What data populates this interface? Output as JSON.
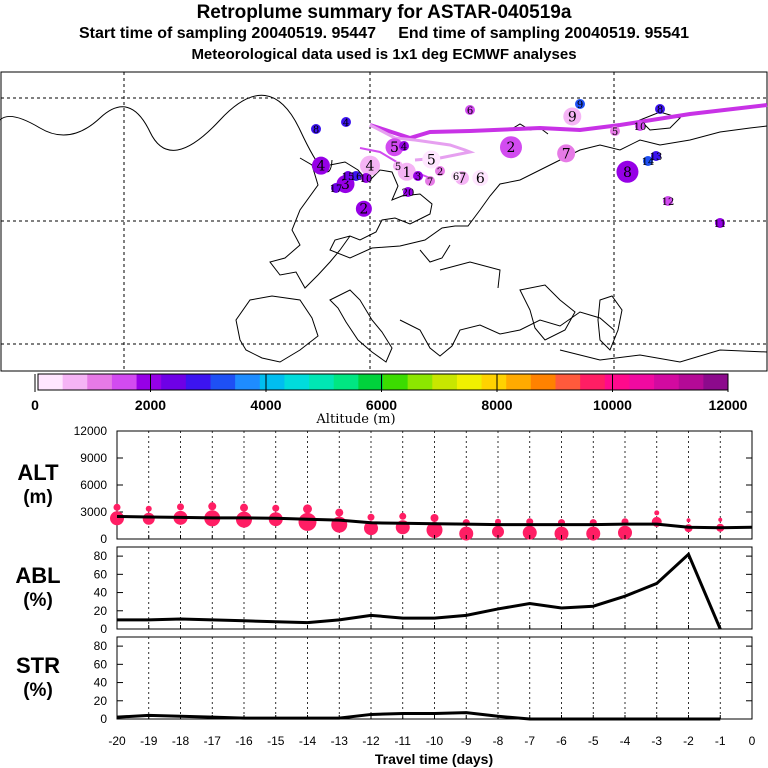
{
  "header": {
    "title": "Retroplume summary for ASTAR-040519a",
    "subtitle": "Start time of sampling 20040519. 95447     End time of sampling 20040519. 95541",
    "meteo": "Meteorological data used is 1x1 deg ECMWF analyses"
  },
  "colorbar": {
    "colors": [
      "#ffe6ff",
      "#f5b4f5",
      "#e67ae6",
      "#d24bf0",
      "#9600e6",
      "#6e00e6",
      "#3c14f0",
      "#1e50f5",
      "#1e8cff",
      "#00bef0",
      "#00dcdc",
      "#00e6b4",
      "#00e682",
      "#00d23c",
      "#3cdc00",
      "#8ce600",
      "#c8e600",
      "#f0f000",
      "#ffd200",
      "#ffaa00",
      "#ff8200",
      "#ff5a3c",
      "#ff1e64",
      "#ff0a8c",
      "#f00aa0",
      "#d20aa0",
      "#b40a96",
      "#8c0a8c"
    ],
    "ticks": [
      "0",
      "2000",
      "4000",
      "6000",
      "8000",
      "10000",
      "12000"
    ],
    "label": "Altitude (m)"
  },
  "map": {
    "plume_labels": [
      {
        "t": "1",
        "lon": 6,
        "lat": 68,
        "c": "#f5b4f5",
        "r": 9
      },
      {
        "t": "2",
        "lon": 23,
        "lat": 72,
        "c": "#d24bf0",
        "r": 11
      },
      {
        "t": "3",
        "lon": -4,
        "lat": 66,
        "c": "#9600e6",
        "r": 9
      },
      {
        "t": "4",
        "lon": -8,
        "lat": 69,
        "c": "#9600e6",
        "r": 9
      },
      {
        "t": "4",
        "lon": 0,
        "lat": 69,
        "c": "#f5b4f5",
        "r": 10
      },
      {
        "t": "5",
        "lon": 4,
        "lat": 72,
        "c": "#d24bf0",
        "r": 9
      },
      {
        "t": "5",
        "lon": 10,
        "lat": 70,
        "c": "#ffe6ff",
        "r": 9
      },
      {
        "t": "7",
        "lon": 15,
        "lat": 67,
        "c": "#f5b4f5",
        "r": 7
      },
      {
        "t": "6",
        "lon": 18,
        "lat": 67,
        "c": "#ffe6ff",
        "r": 8
      },
      {
        "t": "7",
        "lon": 32,
        "lat": 71,
        "c": "#e67ae6",
        "r": 9
      },
      {
        "t": "8",
        "lon": 42,
        "lat": 68,
        "c": "#9600e6",
        "r": 11
      },
      {
        "t": "9",
        "lon": 33,
        "lat": 77,
        "c": "#f5b4f5",
        "r": 9
      },
      {
        "t": "2",
        "lon": -1,
        "lat": 62,
        "c": "#9600e6",
        "r": 8
      }
    ],
    "small_labels": [
      "6",
      "4",
      "8",
      "9",
      "4",
      "16",
      "15",
      "17",
      "10",
      "20",
      "12",
      "14",
      "13",
      "11",
      "5",
      "3",
      "7",
      "2",
      "6",
      "8",
      "10",
      "5"
    ]
  },
  "chart_data": [
    {
      "type": "line",
      "panel": "ALT",
      "ylabel": "ALT\n(m)",
      "yticks": [
        "0",
        "3000",
        "6000",
        "9000",
        "12000"
      ],
      "ylim": [
        0,
        12000
      ],
      "x": [
        -20,
        -19,
        -18,
        -17,
        -16,
        -15,
        -14,
        -13,
        -12,
        -11,
        -10,
        -9,
        -8,
        -7,
        -6,
        -5,
        -4,
        -3,
        -2,
        -1,
        0
      ],
      "values": [
        2500,
        2450,
        2400,
        2350,
        2350,
        2300,
        2200,
        2100,
        1800,
        1750,
        1700,
        1650,
        1600,
        1600,
        1600,
        1600,
        1650,
        1650,
        1300,
        1250,
        1300
      ],
      "dots": [
        {
          "x": -20,
          "alt": 2300,
          "s": 7
        },
        {
          "x": -19,
          "alt": 2250,
          "s": 6
        },
        {
          "x": -18,
          "alt": 2350,
          "s": 7
        },
        {
          "x": -17,
          "alt": 2300,
          "s": 8
        },
        {
          "x": -16,
          "alt": 2150,
          "s": 8
        },
        {
          "x": -15,
          "alt": 2200,
          "s": 7
        },
        {
          "x": -14,
          "alt": 1900,
          "s": 9
        },
        {
          "x": -13,
          "alt": 1600,
          "s": 8
        },
        {
          "x": -12,
          "alt": 1200,
          "s": 7
        },
        {
          "x": -11,
          "alt": 1300,
          "s": 7
        },
        {
          "x": -10,
          "alt": 1000,
          "s": 8
        },
        {
          "x": -9,
          "alt": 600,
          "s": 7
        },
        {
          "x": -8,
          "alt": 800,
          "s": 6
        },
        {
          "x": -7,
          "alt": 700,
          "s": 7
        },
        {
          "x": -6,
          "alt": 600,
          "s": 7
        },
        {
          "x": -5,
          "alt": 600,
          "s": 7
        },
        {
          "x": -4,
          "alt": 700,
          "s": 7
        },
        {
          "x": -3,
          "alt": 1900,
          "s": 5
        },
        {
          "x": -2,
          "alt": 1200,
          "s": 4
        },
        {
          "x": -1,
          "alt": 1250,
          "s": 4
        }
      ]
    },
    {
      "type": "line",
      "panel": "ABL",
      "ylabel": "ABL\n(%)",
      "yticks": [
        "0",
        "20",
        "40",
        "60",
        "80"
      ],
      "ylim": [
        0,
        90
      ],
      "x": [
        -20,
        -19,
        -18,
        -17,
        -16,
        -15,
        -14,
        -13,
        -12,
        -11,
        -10,
        -9,
        -8,
        -7,
        -6,
        -5,
        -4,
        -3,
        -2,
        -1
      ],
      "values": [
        10,
        10,
        11,
        10,
        9,
        8,
        7,
        10,
        15,
        12,
        12,
        15,
        22,
        28,
        23,
        25,
        36,
        50,
        82,
        0
      ]
    },
    {
      "type": "line",
      "panel": "STR",
      "ylabel": "STR\n(%)",
      "yticks": [
        "0",
        "20",
        "40",
        "60",
        "80"
      ],
      "ylim": [
        0,
        90
      ],
      "x": [
        -20,
        -19,
        -18,
        -17,
        -16,
        -15,
        -14,
        -13,
        -12,
        -11,
        -10,
        -9,
        -8,
        -7,
        -6,
        -5,
        -4,
        -3,
        -2,
        -1
      ],
      "values": [
        2,
        4,
        3,
        2,
        1,
        1,
        1,
        1,
        5,
        6,
        6,
        7,
        3,
        0,
        0,
        0,
        0,
        0,
        0,
        0
      ]
    }
  ],
  "xaxis": {
    "ticks": [
      "-20",
      "-19",
      "-18",
      "-17",
      "-16",
      "-15",
      "-14",
      "-13",
      "-12",
      "-11",
      "-10",
      "-9",
      "-8",
      "-7",
      "-6",
      "-5",
      "-4",
      "-3",
      "-2",
      "-1",
      "0"
    ],
    "label": "Travel time (days)"
  }
}
